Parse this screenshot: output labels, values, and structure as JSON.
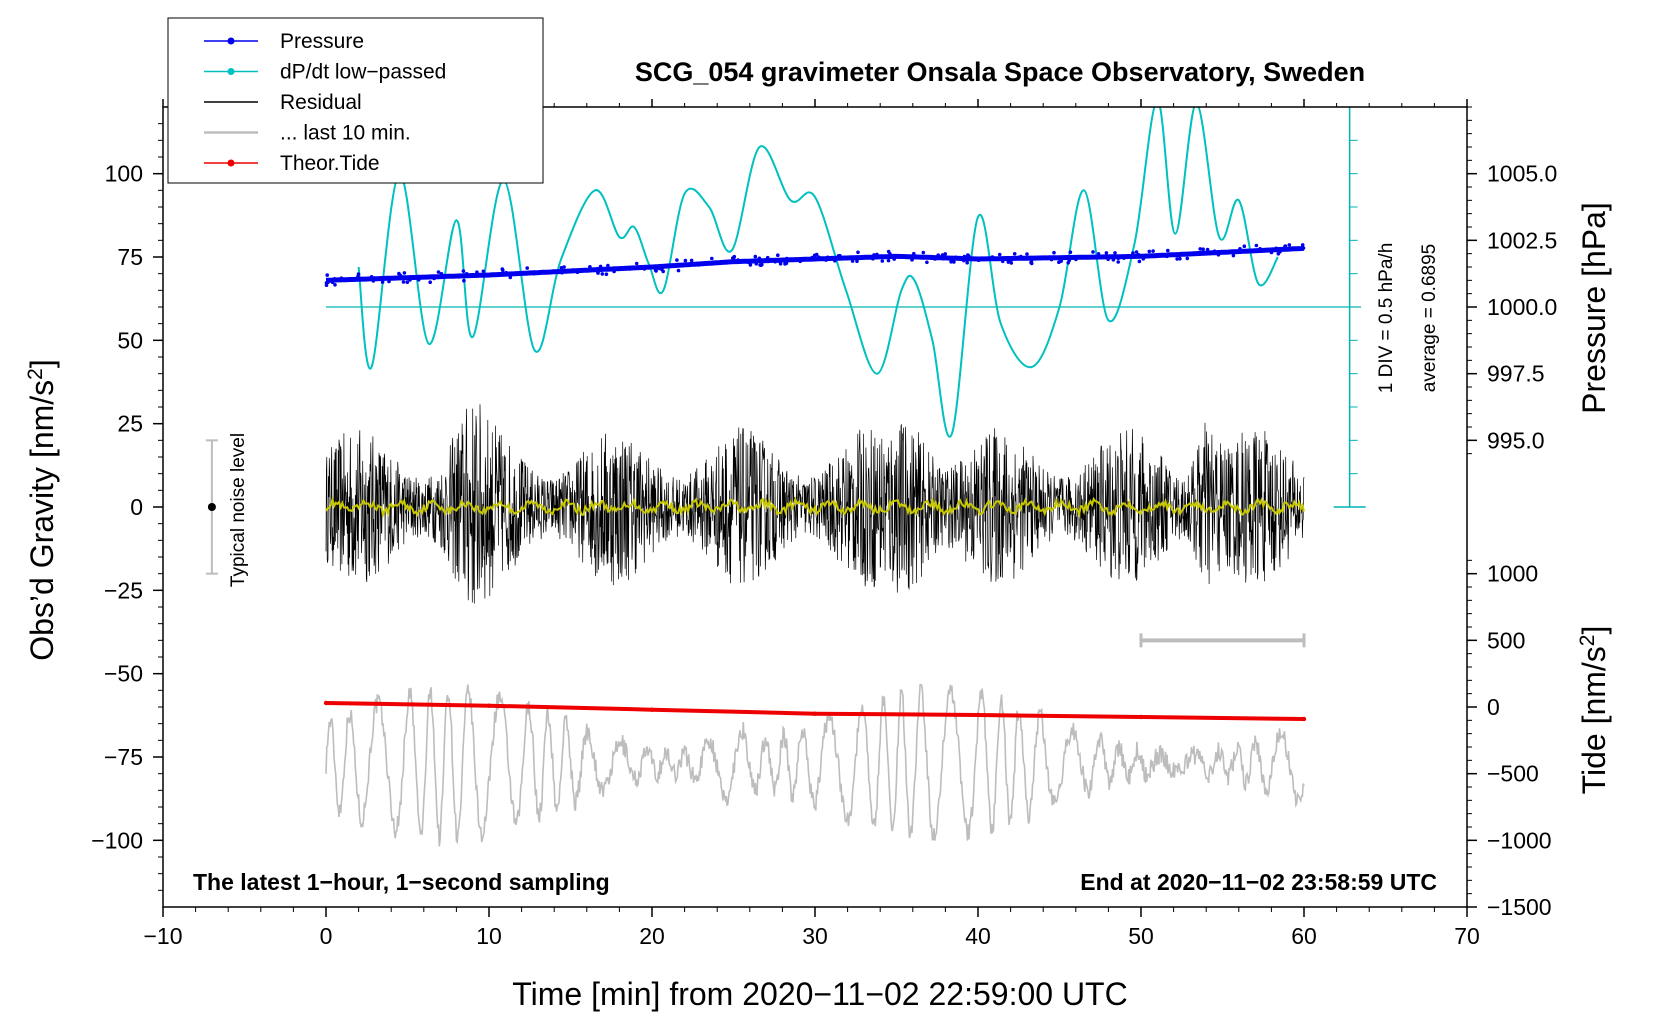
{
  "chart_data": {
    "type": "line",
    "title": "SCG_054 gravimeter Onsala Space Observatory, Sweden",
    "xlabel": "Time [min] from 2020−11−02 22:59:00 UTC",
    "ylabel_left": "Obs’d Gravity [nm/s",
    "ylabel_left_sup": "2",
    "ylabel_left_close": "]",
    "ylabel_right_top": "Pressure [hPa]",
    "ylabel_right_bottom": "Tide [nm/s",
    "ylabel_right_bottom_sup": "2",
    "ylabel_right_bottom_close": "]",
    "xlim": [
      -10,
      70
    ],
    "ylim_left": [
      -120,
      120
    ],
    "x_ticks": [
      -10,
      0,
      10,
      20,
      30,
      40,
      50,
      60,
      70
    ],
    "x_tick_labels": [
      "−10",
      "0",
      "10",
      "20",
      "30",
      "40",
      "50",
      "60",
      "70"
    ],
    "left_ticks": [
      100,
      75,
      50,
      25,
      0,
      -25,
      -50,
      -75,
      -100
    ],
    "left_tick_labels": [
      "100",
      "75",
      "50",
      "25",
      "0",
      "−25",
      "−50",
      "−75",
      "−100"
    ],
    "pressure_axis": {
      "ticks": [
        1005.0,
        1002.5,
        1000.0,
        997.5,
        995.0
      ],
      "tick_labels": [
        "1005.0",
        "1002.5",
        "1000.0",
        "997.5",
        "995.0"
      ],
      "gravity_equiv": [
        100,
        80,
        60,
        40,
        20
      ]
    },
    "tide_axis": {
      "ticks": [
        1000,
        500,
        0,
        -500,
        -1000,
        -1500
      ],
      "tick_labels": [
        "1000",
        "500",
        "0",
        "−500",
        "−1000",
        "−1500"
      ],
      "gravity_equiv": [
        -20,
        -40,
        -60,
        -80,
        -100,
        -120
      ]
    },
    "legend": {
      "position": "top-left",
      "entries": [
        {
          "label": "Pressure",
          "color": "#0000ee",
          "marker": "dot"
        },
        {
          "label": "dP/dt low−passed",
          "color": "#00c0c0",
          "marker": "dot"
        },
        {
          "label": "Residual",
          "color": "#000000",
          "marker": "none"
        },
        {
          "label": "... last 10 min.",
          "color": "#bdbdbd",
          "marker": "none"
        },
        {
          "label": "Theor.Tide",
          "color": "#ee0000",
          "marker": "dot"
        }
      ]
    },
    "annotations": {
      "dpdt_scale": "1 DIV = 0.5 hPa/h",
      "dpdt_average": "average = 0.6895",
      "noise_label": "Typical noise level",
      "noise_bar_range": [
        -20,
        20
      ],
      "noise_bar_x": -7,
      "last10_bar_range": [
        50,
        60
      ],
      "last10_bar_y": -40,
      "dpdt_zero_level": 60,
      "note_left": "The latest 1−hour, 1−second sampling",
      "note_right": "End at 2020−11−02 23:58:59 UTC"
    },
    "series": [
      {
        "name": "Pressure",
        "color": "#0000ee",
        "units": "hPa",
        "x": [
          0,
          5,
          10,
          15,
          20,
          25,
          30,
          35,
          40,
          45,
          50,
          55,
          60
        ],
        "values": [
          1001.0,
          1001.1,
          1001.2,
          1001.35,
          1001.5,
          1001.7,
          1001.8,
          1001.9,
          1001.8,
          1001.85,
          1001.9,
          1002.05,
          1002.2
        ]
      },
      {
        "name": "dP/dt low−passed",
        "color": "#00c0c0",
        "units": "nm/s^2 plot scale",
        "x": [
          2.0,
          2.8,
          4.5,
          6.3,
          8.0,
          9.0,
          10.9,
          12.8,
          14.4,
          16.5,
          18.0,
          18.9,
          19.8,
          20.7,
          22.0,
          23.5,
          24.9,
          26.6,
          28.5,
          30.0,
          31.9,
          33.8,
          35.3,
          36.1,
          37.2,
          38.4,
          40.0,
          41.4,
          43.3,
          45.0,
          46.5,
          48.0,
          49.6,
          51.0,
          52.1,
          53.4,
          54.8,
          56.0,
          57.2,
          58.4
        ],
        "values": [
          72,
          42,
          100,
          49,
          86,
          51,
          98,
          47,
          74,
          95,
          81,
          84,
          73,
          65,
          94,
          90,
          77,
          108,
          92,
          93,
          65,
          40,
          65,
          68,
          50,
          22,
          87,
          55,
          42,
          60,
          95,
          56,
          79,
          122,
          82,
          121,
          81,
          92,
          67,
          75
        ]
      },
      {
        "name": "Residual",
        "color": "#000000",
        "units": "nm/s^2",
        "x_range": [
          0,
          60
        ],
        "envelope": 30
      },
      {
        "name": "Residual smoothed",
        "color": "#c8c800",
        "units": "nm/s^2",
        "x_range": [
          0,
          60
        ],
        "amplitude": 2
      },
      {
        "name": "... last 10 min.",
        "color": "#bdbdbd",
        "units": "nm/s^2 plot scale",
        "x_range": [
          0,
          60
        ],
        "center": -77,
        "envelope": 22
      },
      {
        "name": "Theor.Tide",
        "color": "#ee0000",
        "units": "nm/s^2",
        "x": [
          0,
          10,
          20,
          30,
          40,
          50,
          60
        ],
        "tide_values": [
          30,
          10,
          -20,
          -50,
          -60,
          -75,
          -90
        ]
      }
    ]
  }
}
